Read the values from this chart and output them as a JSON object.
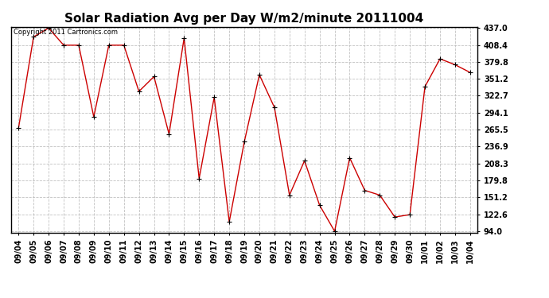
{
  "title": "Solar Radiation Avg per Day W/m2/minute 20111004",
  "copyright_text": "Copyright 2011 Cartronics.com",
  "dates": [
    "09/04",
    "09/05",
    "09/06",
    "09/07",
    "09/08",
    "09/09",
    "09/10",
    "09/11",
    "09/12",
    "09/13",
    "09/14",
    "09/15",
    "09/16",
    "09/17",
    "09/18",
    "09/19",
    "09/20",
    "09/21",
    "09/22",
    "09/23",
    "09/24",
    "09/25",
    "09/26",
    "09/27",
    "09/28",
    "09/29",
    "09/30",
    "10/01",
    "10/02",
    "10/03",
    "10/04"
  ],
  "values": [
    268.0,
    422.0,
    437.0,
    408.0,
    408.0,
    287.0,
    408.0,
    408.0,
    330.0,
    355.0,
    258.0,
    420.0,
    183.0,
    320.0,
    110.0,
    245.0,
    358.0,
    303.0,
    155.0,
    213.0,
    138.0,
    94.0,
    218.0,
    163.0,
    155.0,
    118.0,
    122.0,
    338.0,
    385.0,
    375.0,
    362.0
  ],
  "line_color": "#cc0000",
  "marker_color": "#000000",
  "background_color": "#ffffff",
  "grid_color": "#bbbbbb",
  "ylim_min": 94.0,
  "ylim_max": 437.0,
  "yticks": [
    94.0,
    122.6,
    151.2,
    179.8,
    208.3,
    236.9,
    265.5,
    294.1,
    322.7,
    351.2,
    379.8,
    408.4,
    437.0
  ],
  "ytick_labels": [
    "94.0",
    "122.6",
    "151.2",
    "179.8",
    "208.3",
    "236.9",
    "265.5",
    "294.1",
    "322.7",
    "351.2",
    "379.8",
    "408.4",
    "437.0"
  ],
  "title_fontsize": 11,
  "copyright_fontsize": 6,
  "tick_fontsize": 7,
  "fig_width": 6.9,
  "fig_height": 3.75,
  "dpi": 100
}
